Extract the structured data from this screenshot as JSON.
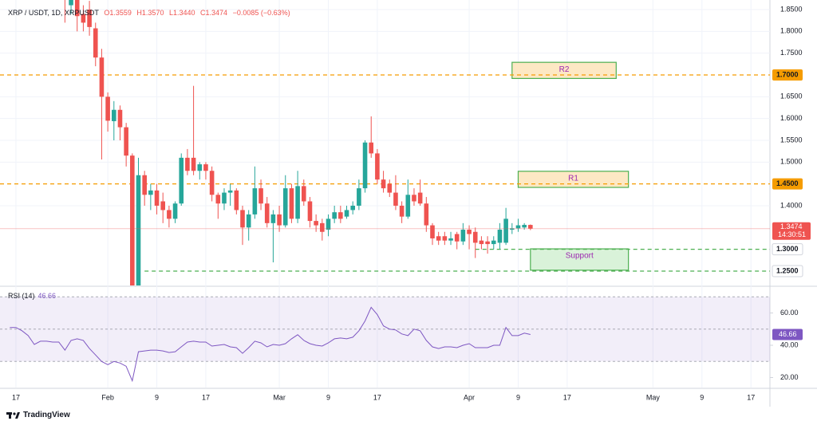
{
  "chart_data": {
    "type": "candlestick",
    "symbol": "XRP / USDT, 1D, XRPUSDT",
    "ohlc_labels": [
      "O1.3559",
      "H1.3570",
      "L1.3440",
      "C1.3474"
    ],
    "change": "−0.0085 (−0.63%)",
    "countdown": "14:30:51",
    "branding": "TradingView",
    "up_color": "#26a69a",
    "down_color": "#ef5350",
    "xlim": [
      14.4,
      140.1
    ],
    "xticks": [
      {
        "value": 17,
        "label": "17"
      },
      {
        "value": 32,
        "label": "Feb"
      },
      {
        "value": 40,
        "label": "9"
      },
      {
        "value": 48,
        "label": "17"
      },
      {
        "value": 60,
        "label": "Mar"
      },
      {
        "value": 68,
        "label": "9"
      },
      {
        "value": 76,
        "label": "17"
      },
      {
        "value": 91,
        "label": "Apr"
      },
      {
        "value": 99,
        "label": "9"
      },
      {
        "value": 107,
        "label": "17"
      },
      {
        "value": 121,
        "label": "May"
      },
      {
        "value": 129,
        "label": "9"
      },
      {
        "value": 137,
        "label": "17"
      }
    ],
    "ylim": [
      1.217,
      1.872
    ],
    "yticks": [
      {
        "value": 1.85,
        "label": "1.8500"
      },
      {
        "value": 1.8,
        "label": "1.8000"
      },
      {
        "value": 1.75,
        "label": "1.7500"
      },
      {
        "value": 1.65,
        "label": "1.6500"
      },
      {
        "value": 1.6,
        "label": "1.6000"
      },
      {
        "value": 1.55,
        "label": "1.5500"
      },
      {
        "value": 1.5,
        "label": "1.5000"
      },
      {
        "value": 1.4,
        "label": "1.4000"
      }
    ],
    "grid": true,
    "levels": [
      {
        "value": 1.7,
        "label": "1.7000",
        "color": "#f59c00",
        "filled": true,
        "from": 14.4
      },
      {
        "value": 1.45,
        "label": "1.4500",
        "color": "#f59c00",
        "filled": true,
        "from": 14.4
      },
      {
        "value": 1.3,
        "label": "1.3000",
        "color": "#4caf50",
        "filled": false,
        "from": 92
      },
      {
        "value": 1.25,
        "label": "1.2500",
        "color": "#4caf50",
        "filled": false,
        "from": 38
      }
    ],
    "zones": [
      {
        "label": "R2",
        "x": [
          98,
          115
        ],
        "y": [
          1.692,
          1.729
        ],
        "fill": "#fde8c4"
      },
      {
        "label": "R1",
        "x": [
          99,
          117
        ],
        "y": [
          1.442,
          1.479
        ],
        "fill": "#fde8c4"
      },
      {
        "label": "Support",
        "x": [
          101,
          117
        ],
        "y": [
          1.252,
          1.301
        ],
        "fill": "#d9f2d9"
      }
    ],
    "candles": [
      {
        "x": 25,
        "o": 1.95,
        "h": 1.98,
        "l": 1.82,
        "c": 1.88
      },
      {
        "x": 26,
        "o": 1.86,
        "h": 1.95,
        "l": 1.84,
        "c": 1.92
      },
      {
        "x": 27,
        "o": 1.88,
        "h": 1.9,
        "l": 1.8,
        "c": 1.835
      },
      {
        "x": 28,
        "o": 1.84,
        "h": 1.86,
        "l": 1.8,
        "c": 1.82
      },
      {
        "x": 29,
        "o": 1.85,
        "h": 1.87,
        "l": 1.79,
        "c": 1.81
      },
      {
        "x": 30,
        "o": 1.807,
        "h": 1.82,
        "l": 1.72,
        "c": 1.74
      },
      {
        "x": 31,
        "o": 1.74,
        "h": 1.76,
        "l": 1.506,
        "c": 1.65
      },
      {
        "x": 32,
        "o": 1.65,
        "h": 1.66,
        "l": 1.57,
        "c": 1.595
      },
      {
        "x": 33,
        "o": 1.594,
        "h": 1.64,
        "l": 1.55,
        "c": 1.62
      },
      {
        "x": 34,
        "o": 1.62,
        "h": 1.63,
        "l": 1.55,
        "c": 1.58
      },
      {
        "x": 35,
        "o": 1.58,
        "h": 1.59,
        "l": 1.49,
        "c": 1.515
      },
      {
        "x": 36,
        "o": 1.515,
        "h": 1.52,
        "l": 1.213,
        "c": 1.215
      },
      {
        "x": 37,
        "o": 1.215,
        "h": 1.51,
        "l": 1.213,
        "c": 1.47
      },
      {
        "x": 38,
        "o": 1.47,
        "h": 1.48,
        "l": 1.4,
        "c": 1.425
      },
      {
        "x": 39,
        "o": 1.425,
        "h": 1.45,
        "l": 1.39,
        "c": 1.435
      },
      {
        "x": 40,
        "o": 1.435,
        "h": 1.45,
        "l": 1.38,
        "c": 1.4
      },
      {
        "x": 41,
        "o": 1.41,
        "h": 1.43,
        "l": 1.36,
        "c": 1.39
      },
      {
        "x": 42,
        "o": 1.39,
        "h": 1.4,
        "l": 1.35,
        "c": 1.37
      },
      {
        "x": 43,
        "o": 1.37,
        "h": 1.41,
        "l": 1.36,
        "c": 1.405
      },
      {
        "x": 44,
        "o": 1.405,
        "h": 1.52,
        "l": 1.4,
        "c": 1.51
      },
      {
        "x": 45,
        "o": 1.51,
        "h": 1.53,
        "l": 1.47,
        "c": 1.48
      },
      {
        "x": 46,
        "o": 1.51,
        "h": 1.675,
        "l": 1.47,
        "c": 1.48
      },
      {
        "x": 47,
        "o": 1.48,
        "h": 1.5,
        "l": 1.46,
        "c": 1.495
      },
      {
        "x": 48,
        "o": 1.495,
        "h": 1.5,
        "l": 1.46,
        "c": 1.48
      },
      {
        "x": 49,
        "o": 1.48,
        "h": 1.49,
        "l": 1.41,
        "c": 1.425
      },
      {
        "x": 50,
        "o": 1.425,
        "h": 1.43,
        "l": 1.37,
        "c": 1.405
      },
      {
        "x": 51,
        "o": 1.405,
        "h": 1.44,
        "l": 1.39,
        "c": 1.43
      },
      {
        "x": 52,
        "o": 1.43,
        "h": 1.45,
        "l": 1.4,
        "c": 1.435
      },
      {
        "x": 53,
        "o": 1.435,
        "h": 1.44,
        "l": 1.38,
        "c": 1.39
      },
      {
        "x": 54,
        "o": 1.39,
        "h": 1.4,
        "l": 1.31,
        "c": 1.35
      },
      {
        "x": 55,
        "o": 1.35,
        "h": 1.39,
        "l": 1.32,
        "c": 1.38
      },
      {
        "x": 56,
        "o": 1.38,
        "h": 1.49,
        "l": 1.37,
        "c": 1.44
      },
      {
        "x": 57,
        "o": 1.44,
        "h": 1.46,
        "l": 1.39,
        "c": 1.405
      },
      {
        "x": 58,
        "o": 1.405,
        "h": 1.42,
        "l": 1.35,
        "c": 1.36
      },
      {
        "x": 59,
        "o": 1.36,
        "h": 1.39,
        "l": 1.27,
        "c": 1.38
      },
      {
        "x": 60,
        "o": 1.38,
        "h": 1.4,
        "l": 1.34,
        "c": 1.355
      },
      {
        "x": 61,
        "o": 1.355,
        "h": 1.47,
        "l": 1.35,
        "c": 1.44
      },
      {
        "x": 62,
        "o": 1.44,
        "h": 1.45,
        "l": 1.36,
        "c": 1.37
      },
      {
        "x": 63,
        "o": 1.37,
        "h": 1.48,
        "l": 1.36,
        "c": 1.445
      },
      {
        "x": 64,
        "o": 1.445,
        "h": 1.46,
        "l": 1.4,
        "c": 1.41
      },
      {
        "x": 65,
        "o": 1.41,
        "h": 1.42,
        "l": 1.35,
        "c": 1.365
      },
      {
        "x": 66,
        "o": 1.365,
        "h": 1.38,
        "l": 1.34,
        "c": 1.355
      },
      {
        "x": 67,
        "o": 1.36,
        "h": 1.37,
        "l": 1.32,
        "c": 1.34
      },
      {
        "x": 68,
        "o": 1.345,
        "h": 1.38,
        "l": 1.33,
        "c": 1.37
      },
      {
        "x": 69,
        "o": 1.37,
        "h": 1.4,
        "l": 1.36,
        "c": 1.385
      },
      {
        "x": 70,
        "o": 1.385,
        "h": 1.4,
        "l": 1.36,
        "c": 1.37
      },
      {
        "x": 71,
        "o": 1.375,
        "h": 1.4,
        "l": 1.37,
        "c": 1.39
      },
      {
        "x": 72,
        "o": 1.39,
        "h": 1.41,
        "l": 1.38,
        "c": 1.4
      },
      {
        "x": 73,
        "o": 1.4,
        "h": 1.46,
        "l": 1.39,
        "c": 1.44
      },
      {
        "x": 74,
        "o": 1.44,
        "h": 1.55,
        "l": 1.43,
        "c": 1.545
      },
      {
        "x": 75,
        "o": 1.545,
        "h": 1.605,
        "l": 1.51,
        "c": 1.52
      },
      {
        "x": 76,
        "o": 1.52,
        "h": 1.53,
        "l": 1.45,
        "c": 1.46
      },
      {
        "x": 77,
        "o": 1.46,
        "h": 1.48,
        "l": 1.43,
        "c": 1.44
      },
      {
        "x": 78,
        "o": 1.45,
        "h": 1.46,
        "l": 1.42,
        "c": 1.43
      },
      {
        "x": 79,
        "o": 1.43,
        "h": 1.47,
        "l": 1.39,
        "c": 1.4
      },
      {
        "x": 80,
        "o": 1.4,
        "h": 1.41,
        "l": 1.36,
        "c": 1.375
      },
      {
        "x": 81,
        "o": 1.375,
        "h": 1.46,
        "l": 1.37,
        "c": 1.425
      },
      {
        "x": 82,
        "o": 1.425,
        "h": 1.44,
        "l": 1.4,
        "c": 1.41
      },
      {
        "x": 83,
        "o": 1.43,
        "h": 1.46,
        "l": 1.4,
        "c": 1.405
      },
      {
        "x": 84,
        "o": 1.405,
        "h": 1.42,
        "l": 1.34,
        "c": 1.355
      },
      {
        "x": 85,
        "o": 1.355,
        "h": 1.36,
        "l": 1.31,
        "c": 1.325
      },
      {
        "x": 86,
        "o": 1.33,
        "h": 1.34,
        "l": 1.31,
        "c": 1.32
      },
      {
        "x": 87,
        "o": 1.33,
        "h": 1.34,
        "l": 1.31,
        "c": 1.32
      },
      {
        "x": 88,
        "o": 1.32,
        "h": 1.34,
        "l": 1.31,
        "c": 1.325
      },
      {
        "x": 89,
        "o": 1.335,
        "h": 1.34,
        "l": 1.3,
        "c": 1.318
      },
      {
        "x": 90,
        "o": 1.318,
        "h": 1.36,
        "l": 1.31,
        "c": 1.345
      },
      {
        "x": 91,
        "o": 1.345,
        "h": 1.355,
        "l": 1.3,
        "c": 1.335
      },
      {
        "x": 92,
        "o": 1.34,
        "h": 1.35,
        "l": 1.28,
        "c": 1.315
      },
      {
        "x": 93,
        "o": 1.32,
        "h": 1.33,
        "l": 1.3,
        "c": 1.312
      },
      {
        "x": 94,
        "o": 1.318,
        "h": 1.33,
        "l": 1.29,
        "c": 1.312
      },
      {
        "x": 95,
        "o": 1.312,
        "h": 1.33,
        "l": 1.3,
        "c": 1.32
      },
      {
        "x": 96,
        "o": 1.315,
        "h": 1.36,
        "l": 1.3,
        "c": 1.345
      },
      {
        "x": 97,
        "o": 1.315,
        "h": 1.395,
        "l": 1.31,
        "c": 1.37
      },
      {
        "x": 98,
        "o": 1.345,
        "h": 1.36,
        "l": 1.335,
        "c": 1.348
      },
      {
        "x": 99,
        "o": 1.348,
        "h": 1.37,
        "l": 1.34,
        "c": 1.355
      },
      {
        "x": 100,
        "o": 1.35,
        "h": 1.36,
        "l": 1.345,
        "c": 1.356
      },
      {
        "x": 101,
        "o": 1.3559,
        "h": 1.357,
        "l": 1.344,
        "c": 1.3474
      }
    ],
    "rsi": {
      "title": "RSI (14)",
      "color": "#7e57c2",
      "ylim": [
        13.83,
        76.05
      ],
      "yticks": [
        {
          "value": 60,
          "label": "60.00"
        },
        {
          "value": 40,
          "label": "40.00"
        },
        {
          "value": 20,
          "label": "20.00"
        }
      ],
      "bands": [
        70,
        50,
        30
      ],
      "x": [
        16,
        17,
        18,
        19,
        20,
        21,
        22,
        23,
        24,
        25,
        26,
        27,
        28,
        29,
        30,
        31,
        32,
        33,
        34,
        35,
        36,
        37,
        38,
        39,
        40,
        41,
        42,
        43,
        44,
        45,
        46,
        47,
        48,
        49,
        50,
        51,
        52,
        53,
        54,
        55,
        56,
        57,
        58,
        59,
        60,
        61,
        62,
        63,
        64,
        65,
        66,
        67,
        68,
        69,
        70,
        71,
        72,
        73,
        74,
        75,
        76,
        77,
        78,
        79,
        80,
        81,
        82,
        83,
        84,
        85,
        86,
        87,
        88,
        89,
        90,
        91,
        92,
        93,
        94,
        95,
        96,
        97,
        98,
        99,
        100,
        101
      ],
      "values": [
        51,
        51,
        49,
        46,
        40.5,
        42.5,
        42.5,
        42,
        42,
        37,
        43,
        44,
        43,
        38,
        34,
        30,
        28,
        30,
        29,
        27,
        18,
        36,
        36.5,
        37,
        37,
        36.5,
        35.5,
        36,
        39,
        42,
        42.5,
        42,
        42,
        39.5,
        40,
        40.5,
        39,
        38.5,
        35,
        38.5,
        42.5,
        41.5,
        39,
        40.5,
        40,
        41,
        44,
        46.5,
        43,
        41,
        40,
        39.5,
        41.5,
        44,
        44.5,
        44,
        45,
        49,
        55,
        63.5,
        59,
        52,
        50,
        49.5,
        47,
        46,
        50,
        49,
        43,
        39,
        38,
        39,
        39,
        38.5,
        40,
        41,
        38.5,
        38.5,
        38.5,
        40,
        40,
        51,
        46,
        46,
        47.5,
        46.66
      ]
    }
  }
}
